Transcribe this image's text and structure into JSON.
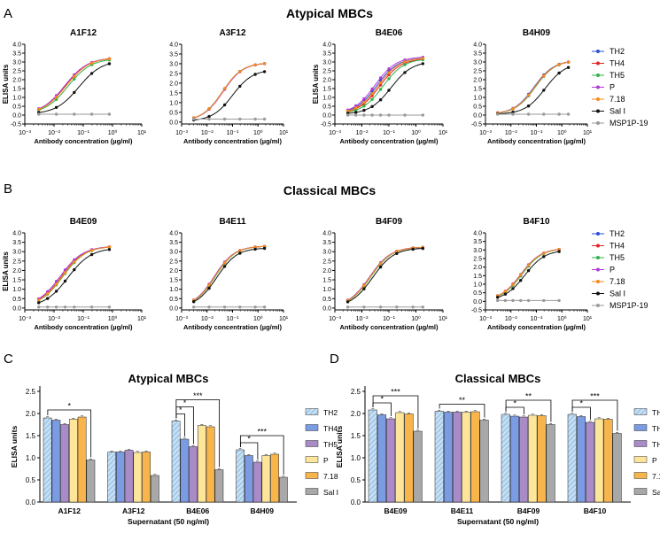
{
  "panel_letters": [
    "A",
    "B",
    "C",
    "D"
  ],
  "sections": {
    "A": "Atypical MBCs",
    "B": "Classical MBCs"
  },
  "curve_legend": {
    "entries": [
      {
        "name": "TH2",
        "color": "#2b4fd6"
      },
      {
        "name": "TH4",
        "color": "#e02424"
      },
      {
        "name": "TH5",
        "color": "#2fb34a"
      },
      {
        "name": "P",
        "color": "#b23ad8"
      },
      {
        "name": "7.18",
        "color": "#f5891e"
      },
      {
        "name": "Sal I",
        "color": "#111111"
      },
      {
        "name": "MSP1P-19",
        "color": "#9a9a9a"
      }
    ]
  },
  "bar_legend": {
    "entries": [
      {
        "name": "TH2",
        "color": "#a9cdea",
        "hatch": true
      },
      {
        "name": "TH4",
        "color": "#7b9be2"
      },
      {
        "name": "TH5",
        "color": "#a98bc7"
      },
      {
        "name": "P",
        "color": "#fde69a"
      },
      {
        "name": "7.18",
        "color": "#f7b54c"
      },
      {
        "name": "Sal I",
        "color": "#a8a8a8"
      }
    ]
  },
  "chart_data": [
    {
      "type": "line",
      "id": "A1F12",
      "section": "Atypical MBCs",
      "title": "A1F12",
      "xscale": "log",
      "xlabel": "Antibody concentration (µg/ml)",
      "ylabel": "ELISA units",
      "xticks": [
        "10⁻³",
        "10⁻²",
        "10⁻¹",
        "10⁰",
        "10¹"
      ],
      "yticks": [
        "-0.5",
        "0.0",
        "0.5",
        "1.0",
        "1.5",
        "2.0",
        "2.5",
        "3.0",
        "3.5",
        "4.0"
      ],
      "ylim": [
        -0.5,
        4.0
      ],
      "x": [
        0.003,
        0.012,
        0.049,
        0.195,
        0.78
      ],
      "series": [
        {
          "name": "TH2",
          "top": 3.25,
          "ec50": 0.025
        },
        {
          "name": "TH4",
          "top": 3.25,
          "ec50": 0.024
        },
        {
          "name": "TH5",
          "top": 3.2,
          "ec50": 0.03
        },
        {
          "name": "P",
          "top": 3.25,
          "ec50": 0.023
        },
        {
          "name": "7.18",
          "top": 3.25,
          "ec50": 0.026
        },
        {
          "name": "Sal I",
          "top": 3.1,
          "ec50": 0.07
        },
        {
          "name": "MSP1P-19",
          "flat": 0.05
        }
      ]
    },
    {
      "type": "line",
      "id": "A3F12",
      "section": "Atypical MBCs",
      "title": "A3F12",
      "xscale": "log",
      "xlabel": "Antibody concentration (µg/ml)",
      "ylabel": "",
      "xticks": [
        "10⁻³",
        "10⁻²",
        "10⁻¹",
        "10⁰",
        "10¹"
      ],
      "yticks": [
        "0.0",
        "0.5",
        "1.0",
        "1.5",
        "2.0",
        "2.5",
        "3.0",
        "3.5",
        "4.0"
      ],
      "ylim": [
        -0.1,
        4.0
      ],
      "x": [
        0.003,
        0.012,
        0.049,
        0.195,
        0.78,
        1.8
      ],
      "series": [
        {
          "name": "TH2",
          "top": 3.05,
          "ec50": 0.04
        },
        {
          "name": "TH4",
          "top": 3.05,
          "ec50": 0.04
        },
        {
          "name": "TH5",
          "top": 3.05,
          "ec50": 0.04
        },
        {
          "name": "P",
          "top": 3.05,
          "ec50": 0.042
        },
        {
          "name": "7.18",
          "top": 3.05,
          "ec50": 0.04
        },
        {
          "name": "Sal I",
          "top": 2.7,
          "ec50": 0.1
        },
        {
          "name": "MSP1P-19",
          "flat": 0.15
        }
      ]
    },
    {
      "type": "line",
      "id": "B4E06",
      "section": "Atypical MBCs",
      "title": "B4E06",
      "xscale": "log",
      "xlabel": "Antibody concentration (µg/ml)",
      "ylabel": "ELISA units",
      "xticks": [
        "10⁻³",
        "10⁻²",
        "10⁻¹",
        "10⁰",
        "10¹"
      ],
      "yticks": [
        "-0.5",
        "0.0",
        "0.5",
        "1.0",
        "1.5",
        "2.0",
        "2.5",
        "3.0",
        "3.5",
        "4.0"
      ],
      "ylim": [
        -0.5,
        4.0
      ],
      "x": [
        0.003,
        0.006,
        0.012,
        0.024,
        0.049,
        0.1,
        0.39,
        1.8
      ],
      "series": [
        {
          "name": "TH2",
          "top": 3.25,
          "ec50": 0.035
        },
        {
          "name": "TH4",
          "top": 3.2,
          "ec50": 0.045
        },
        {
          "name": "TH5",
          "top": 3.2,
          "ec50": 0.06
        },
        {
          "name": "P",
          "top": 3.3,
          "ec50": 0.03
        },
        {
          "name": "7.18",
          "top": 3.25,
          "ec50": 0.04
        },
        {
          "name": "Sal I",
          "top": 3.05,
          "ec50": 0.12
        },
        {
          "name": "MSP1P-19",
          "flat": 0.0
        }
      ]
    },
    {
      "type": "line",
      "id": "B4H09",
      "section": "Atypical MBCs",
      "title": "B4H09",
      "xscale": "log",
      "xlabel": "Antibody concentration (µg/ml)",
      "ylabel": "",
      "xticks": [
        "10⁻³",
        "10⁻²",
        "10⁻¹",
        "10⁰",
        "10¹"
      ],
      "yticks": [
        "-0.5",
        "0.0",
        "0.5",
        "1.0",
        "1.5",
        "2.0",
        "2.5",
        "3.0",
        "3.5",
        "4.0"
      ],
      "ylim": [
        -0.5,
        4.0
      ],
      "x": [
        0.003,
        0.012,
        0.049,
        0.195,
        0.78,
        1.8
      ],
      "series": [
        {
          "name": "TH2",
          "top": 3.1,
          "ec50": 0.08
        },
        {
          "name": "TH4",
          "top": 3.1,
          "ec50": 0.085
        },
        {
          "name": "TH5",
          "top": 3.1,
          "ec50": 0.09
        },
        {
          "name": "P",
          "top": 3.1,
          "ec50": 0.085
        },
        {
          "name": "7.18",
          "top": 3.1,
          "ec50": 0.085
        },
        {
          "name": "Sal I",
          "top": 2.95,
          "ec50": 0.22
        },
        {
          "name": "MSP1P-19",
          "flat": 0.05
        }
      ]
    },
    {
      "type": "line",
      "id": "B4E09",
      "section": "Classical MBCs",
      "title": "B4E09",
      "xscale": "log",
      "xlabel": "Antibody concentration (µg/ml)",
      "ylabel": "ELISA units",
      "xticks": [
        "10⁻³",
        "10⁻²",
        "10⁻¹",
        "10⁰",
        "10¹"
      ],
      "yticks": [
        "0.0",
        "0.5",
        "1.0",
        "1.5",
        "2.0",
        "2.5",
        "3.0",
        "3.5",
        "4.0"
      ],
      "ylim": [
        -0.1,
        4.0
      ],
      "x": [
        0.003,
        0.006,
        0.012,
        0.024,
        0.049,
        0.195,
        0.78
      ],
      "series": [
        {
          "name": "TH2",
          "top": 3.3,
          "ec50": 0.018
        },
        {
          "name": "TH4",
          "top": 3.3,
          "ec50": 0.018
        },
        {
          "name": "TH5",
          "top": 3.3,
          "ec50": 0.02
        },
        {
          "name": "P",
          "top": 3.3,
          "ec50": 0.016
        },
        {
          "name": "7.18",
          "top": 3.3,
          "ec50": 0.019
        },
        {
          "name": "Sal I",
          "top": 3.2,
          "ec50": 0.03
        },
        {
          "name": "MSP1P-19",
          "flat": 0.05
        }
      ]
    },
    {
      "type": "line",
      "id": "B4E11",
      "section": "Classical MBCs",
      "title": "B4E11",
      "xscale": "log",
      "xlabel": "Antibody concentration (µg/ml)",
      "ylabel": "",
      "xticks": [
        "10⁻³",
        "10⁻²",
        "10⁻¹",
        "10⁰",
        "10¹"
      ],
      "yticks": [
        "0.0",
        "0.5",
        "1.0",
        "1.5",
        "2.0",
        "2.5",
        "3.0",
        "3.5",
        "4.0"
      ],
      "ylim": [
        -0.1,
        4.0
      ],
      "x": [
        0.003,
        0.012,
        0.049,
        0.195,
        0.78,
        1.8
      ],
      "series": [
        {
          "name": "TH2",
          "top": 3.3,
          "ec50": 0.02
        },
        {
          "name": "TH4",
          "top": 3.3,
          "ec50": 0.02
        },
        {
          "name": "TH5",
          "top": 3.3,
          "ec50": 0.021
        },
        {
          "name": "P",
          "top": 3.3,
          "ec50": 0.019
        },
        {
          "name": "7.18",
          "top": 3.3,
          "ec50": 0.02
        },
        {
          "name": "Sal I",
          "top": 3.2,
          "ec50": 0.024
        },
        {
          "name": "MSP1P-19",
          "flat": 0.05
        }
      ]
    },
    {
      "type": "line",
      "id": "B4F09",
      "section": "Classical MBCs",
      "title": "B4F09",
      "xscale": "log",
      "xlabel": "Antibody concentration (µg/ml)",
      "ylabel": "",
      "xticks": [
        "10⁻³",
        "10⁻²",
        "10⁻¹",
        "10⁰",
        "10¹"
      ],
      "yticks": [
        "0.0",
        "0.5",
        "1.0",
        "1.5",
        "2.0",
        "2.5",
        "3.0",
        "3.5",
        "4.0"
      ],
      "ylim": [
        -0.1,
        4.0
      ],
      "x": [
        0.003,
        0.012,
        0.049,
        0.195,
        0.78,
        1.8
      ],
      "series": [
        {
          "name": "TH2",
          "top": 3.25,
          "ec50": 0.02
        },
        {
          "name": "TH4",
          "top": 3.25,
          "ec50": 0.02
        },
        {
          "name": "TH5",
          "top": 3.25,
          "ec50": 0.021
        },
        {
          "name": "P",
          "top": 3.25,
          "ec50": 0.019
        },
        {
          "name": "7.18",
          "top": 3.25,
          "ec50": 0.02
        },
        {
          "name": "Sal I",
          "top": 3.2,
          "ec50": 0.025
        },
        {
          "name": "MSP1P-19",
          "flat": 0.05
        }
      ]
    },
    {
      "type": "line",
      "id": "B4F10",
      "section": "Classical MBCs",
      "title": "B4F10",
      "xscale": "log",
      "xlabel": "Antibody concentration (µg/ml)",
      "ylabel": "",
      "xticks": [
        "10⁻³",
        "10⁻²",
        "10⁻¹",
        "10⁰",
        "10¹"
      ],
      "yticks": [
        "-0.5",
        "0.0",
        "0.5",
        "1.0",
        "1.5",
        "2.0",
        "2.5",
        "3.0",
        "3.5",
        "4.0"
      ],
      "ylim": [
        -0.5,
        4.0
      ],
      "x": [
        0.003,
        0.006,
        0.012,
        0.024,
        0.049,
        0.195,
        0.78
      ],
      "series": [
        {
          "name": "TH2",
          "top": 3.1,
          "ec50": 0.025
        },
        {
          "name": "TH4",
          "top": 3.1,
          "ec50": 0.025
        },
        {
          "name": "TH5",
          "top": 3.1,
          "ec50": 0.027
        },
        {
          "name": "P",
          "top": 3.1,
          "ec50": 0.024
        },
        {
          "name": "7.18",
          "top": 3.1,
          "ec50": 0.025
        },
        {
          "name": "Sal I",
          "top": 3.0,
          "ec50": 0.035
        },
        {
          "name": "MSP1P-19",
          "flat": 0.05
        }
      ]
    },
    {
      "type": "bar",
      "id": "barC",
      "title": "Atypical MBCs",
      "xlabel": "Supernatant (50 ng/ml)",
      "ylabel": "ELISA units",
      "ylim": [
        0,
        2.5
      ],
      "yticks": [
        "0.0",
        "0.5",
        "1.0",
        "1.5",
        "2.0",
        "2.5"
      ],
      "categories": [
        "A1F12",
        "A3F12",
        "B4E06",
        "B4H09"
      ],
      "series": [
        {
          "name": "TH2",
          "values": [
            1.9,
            1.13,
            1.83,
            1.18
          ]
        },
        {
          "name": "TH4",
          "values": [
            1.85,
            1.13,
            1.42,
            1.05
          ]
        },
        {
          "name": "TH5",
          "values": [
            1.75,
            1.17,
            1.25,
            0.9
          ]
        },
        {
          "name": "P",
          "values": [
            1.87,
            1.12,
            1.73,
            1.05
          ]
        },
        {
          "name": "7.18",
          "values": [
            1.92,
            1.13,
            1.7,
            1.08
          ]
        },
        {
          "name": "Sal I",
          "values": [
            0.95,
            0.6,
            0.73,
            0.56
          ]
        }
      ],
      "annotations": [
        {
          "category": 0,
          "from": 0,
          "to": 5,
          "label": "*"
        },
        {
          "category": 2,
          "from": 0,
          "to": 1,
          "label": "*"
        },
        {
          "category": 2,
          "from": 0,
          "to": 2,
          "label": "*"
        },
        {
          "category": 2,
          "from": 0,
          "to": 5,
          "label": "***"
        },
        {
          "category": 3,
          "from": 0,
          "to": 2,
          "label": "*"
        },
        {
          "category": 3,
          "from": 0,
          "to": 5,
          "label": "***"
        }
      ]
    },
    {
      "type": "bar",
      "id": "barD",
      "title": "Classical MBCs",
      "xlabel": "Supernatant (50 ng/ml)",
      "ylabel": "ELISA units",
      "ylim": [
        0,
        2.5
      ],
      "yticks": [
        "0.0",
        "0.5",
        "1.0",
        "1.5",
        "2.0",
        "2.5"
      ],
      "categories": [
        "B4E09",
        "B4E11",
        "B4F09",
        "B4F10"
      ],
      "series": [
        {
          "name": "TH2",
          "values": [
            2.08,
            2.05,
            1.98,
            1.98
          ]
        },
        {
          "name": "TH4",
          "values": [
            1.97,
            2.03,
            1.94,
            1.93
          ]
        },
        {
          "name": "TH5",
          "values": [
            1.88,
            2.03,
            1.92,
            1.8
          ]
        },
        {
          "name": "P",
          "values": [
            2.02,
            2.03,
            1.96,
            1.88
          ]
        },
        {
          "name": "7.18",
          "values": [
            1.99,
            2.04,
            1.95,
            1.87
          ]
        },
        {
          "name": "Sal I",
          "values": [
            1.6,
            1.85,
            1.75,
            1.55
          ]
        }
      ],
      "annotations": [
        {
          "category": 0,
          "from": 0,
          "to": 2,
          "label": "*"
        },
        {
          "category": 0,
          "from": 0,
          "to": 5,
          "label": "***"
        },
        {
          "category": 1,
          "from": 0,
          "to": 5,
          "label": "**"
        },
        {
          "category": 2,
          "from": 0,
          "to": 2,
          "label": "*"
        },
        {
          "category": 2,
          "from": 0,
          "to": 5,
          "label": "**"
        },
        {
          "category": 3,
          "from": 0,
          "to": 2,
          "label": "*"
        },
        {
          "category": 3,
          "from": 0,
          "to": 5,
          "label": "***"
        }
      ]
    }
  ]
}
